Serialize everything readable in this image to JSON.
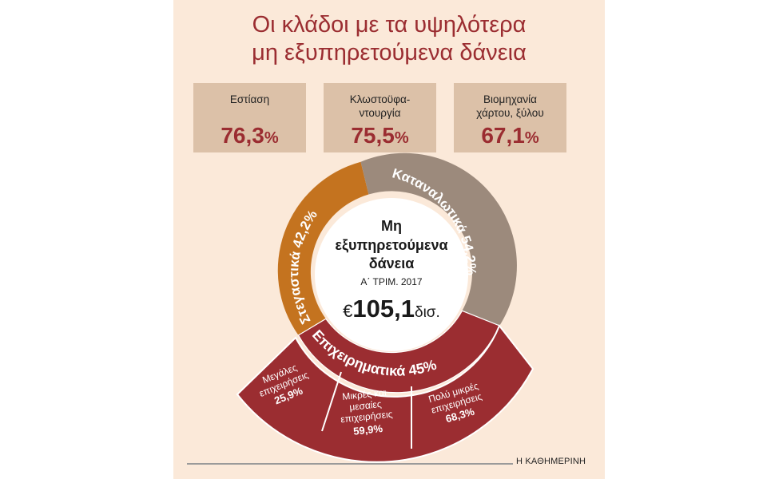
{
  "title": {
    "line1": "Οι κλάδοι με τα υψηλότερα",
    "line2": "μη εξυπηρετούμενα δάνεια"
  },
  "boxes": [
    {
      "label_line1": "Εστίαση",
      "label_line2": "",
      "value": "76,3",
      "unit": "%"
    },
    {
      "label_line1": "Κλωστοϋφα-",
      "label_line2": "ντουργία",
      "value": "75,5",
      "unit": "%"
    },
    {
      "label_line1": "Βιομηχανία",
      "label_line2": "χάρτου, ξύλου",
      "value": "67,1",
      "unit": "%"
    }
  ],
  "center": {
    "line1": "Μη",
    "line2": "εξυπηρετούμενα",
    "line3": "δάνεια",
    "period": "Α΄ ΤΡΙΜ. 2017",
    "currency": "€",
    "amount": "105,1",
    "amount_unit": "δισ."
  },
  "colors": {
    "panel": "#fbe9d9",
    "accent": "#9b2d31",
    "mortgage": "#c4731f",
    "consumer": "#9c8a7c",
    "business": "#9b2d31",
    "box": "#dcc1a8"
  },
  "chart_data": {
    "type": "pie",
    "title": "Μη εξυπηρετούμενα δάνεια",
    "subtitle": "Α΄ ΤΡΙΜ. 2017",
    "total": 105.1,
    "total_unit": "€ δισ.",
    "slices": [
      {
        "name": "Στεγαστικά",
        "label_text": "Στεγαστικά 42,2%",
        "value": 42.2,
        "color": "#c4731f"
      },
      {
        "name": "Καταναλωτικά",
        "label_text": "Καταναλωτικά 54,2%",
        "value": 54.2,
        "color": "#9c8a7c"
      },
      {
        "name": "Επιχειρηματικά",
        "label_text": "Επιχειρηματικά 45%",
        "value": 45,
        "color": "#9b2d31"
      }
    ],
    "breakdown": {
      "parent": "Επιχειρηματικά",
      "items": [
        {
          "label_line1": "Μεγάλες",
          "label_line2": "επιχειρήσεις",
          "label_line3": "",
          "value_text": "25,9%",
          "value": 25.9
        },
        {
          "label_line1": "Μικρές και",
          "label_line2": "μεσαίες",
          "label_line3": "επιχειρήσεις",
          "value_text": "59,9%",
          "value": 59.9
        },
        {
          "label_line1": "Πολύ μικρές",
          "label_line2": "επιχειρήσεις",
          "label_line3": "",
          "value_text": "68,3%",
          "value": 68.3
        }
      ]
    }
  },
  "footer": "Η ΚΑΘΗΜΕΡΙΝΗ"
}
